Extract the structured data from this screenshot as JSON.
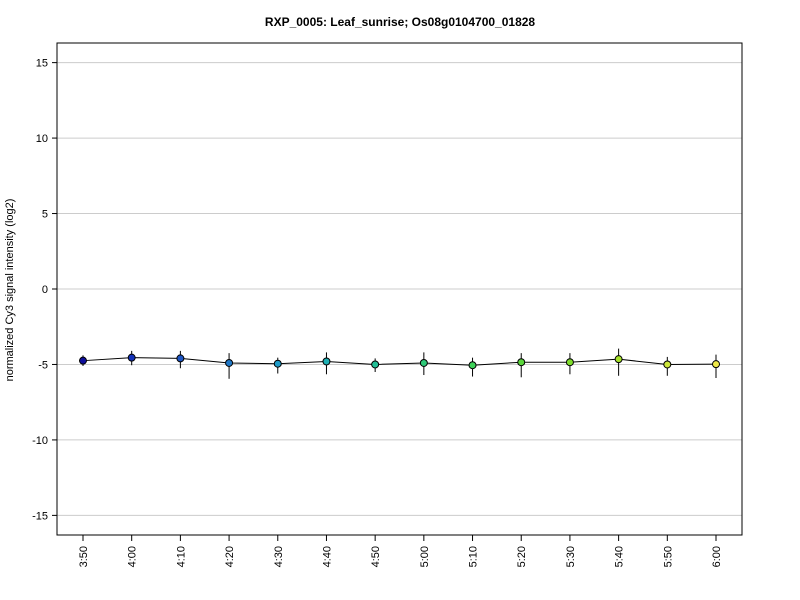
{
  "chart_data": {
    "type": "line",
    "title": "RXP_0005: Leaf_sunrise; Os08g0104700_01828",
    "xlabel": "",
    "ylabel": "normalized Cy3 signal intensity (log2)",
    "categories": [
      "3:50",
      "4:00",
      "4:10",
      "4:20",
      "4:30",
      "4:40",
      "4:50",
      "5:00",
      "5:10",
      "5:20",
      "5:30",
      "5:40",
      "5:50",
      "6:00"
    ],
    "values": [
      -4.75,
      -4.55,
      -4.6,
      -4.9,
      -4.95,
      -4.8,
      -5.0,
      -4.9,
      -5.05,
      -4.85,
      -4.85,
      -4.65,
      -5.0,
      -4.98
    ],
    "error_low": [
      -5.1,
      -5.05,
      -5.25,
      -5.95,
      -5.6,
      -5.65,
      -5.5,
      -5.7,
      -5.8,
      -5.85,
      -5.65,
      -5.75,
      -5.75,
      -5.9
    ],
    "error_high": [
      -4.4,
      -4.1,
      -4.1,
      -4.25,
      -4.55,
      -4.2,
      -4.6,
      -4.2,
      -4.55,
      -4.25,
      -4.25,
      -3.95,
      -4.5,
      -4.35
    ],
    "point_colors": [
      "#0d0d9c",
      "#1231b8",
      "#1c55c4",
      "#1f78c8",
      "#1f9bc8",
      "#1fb0b4",
      "#22bf96",
      "#2ec878",
      "#3ed25a",
      "#5bd63c",
      "#7edd2a",
      "#a6e22a",
      "#cde63a",
      "#f0ea4a"
    ],
    "yticks": [
      -15,
      -10,
      -5,
      0,
      5,
      10,
      15
    ],
    "ylim": [
      -16.3,
      16.3
    ],
    "grid": true,
    "line_color": "#000000",
    "grid_color": "#cccccc"
  }
}
